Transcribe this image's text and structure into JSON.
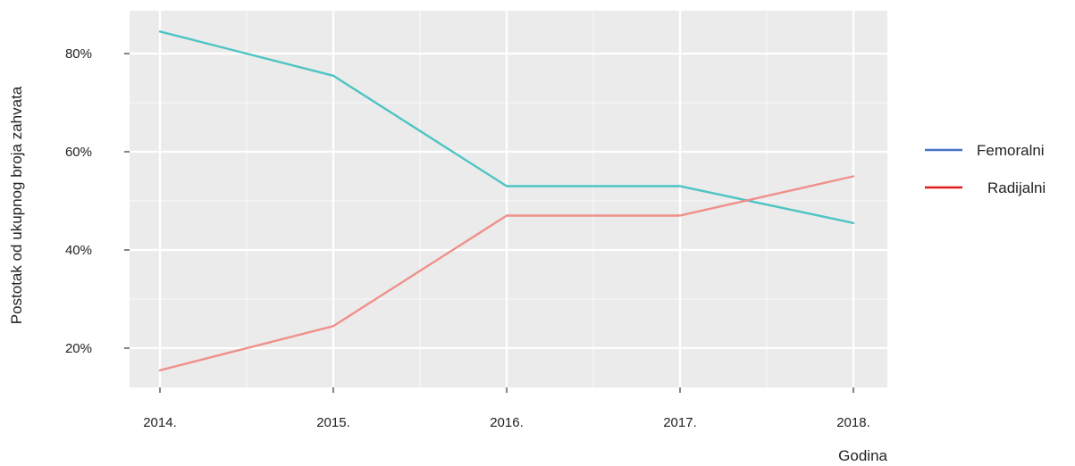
{
  "chart_data": {
    "type": "line",
    "title": "",
    "xlabel": "Godina",
    "ylabel": "Postotak od ukupnog broja zahvata",
    "categories": [
      "2014.",
      "2015.",
      "2016.",
      "2017.",
      "2018."
    ],
    "ylim": [
      0.12,
      0.88
    ],
    "yticks": [
      0.2,
      0.4,
      0.6,
      0.8
    ],
    "ytick_labels": [
      "20%",
      "40%",
      "60%",
      "80%"
    ],
    "grid": true,
    "legend_position": "right",
    "series": [
      {
        "name": "Femoralni",
        "values": [
          0.845,
          0.755,
          0.53,
          0.53,
          0.455
        ],
        "color": "#4ec4c4",
        "legend_color": "#4472c4"
      },
      {
        "name": "Radijalni",
        "values": [
          0.155,
          0.245,
          0.47,
          0.47,
          0.55
        ],
        "color": "#f0908a",
        "legend_color": "#e31a1c"
      }
    ],
    "panel_color": "#ebebeb",
    "grid_color": "#ffffff"
  }
}
